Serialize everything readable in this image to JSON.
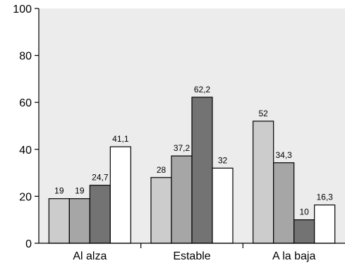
{
  "chart_data": {
    "type": "bar",
    "categories": [
      "Al alza",
      "Estable",
      "A la baja"
    ],
    "series": [
      {
        "values": [
          19,
          28,
          52
        ],
        "labels": [
          "19",
          "28",
          "52"
        ],
        "color": "#cccccc"
      },
      {
        "values": [
          19,
          37.2,
          34.3
        ],
        "labels": [
          "19",
          "37,2",
          "34,3"
        ],
        "color": "#a6a6a6"
      },
      {
        "values": [
          24.7,
          62.2,
          10
        ],
        "labels": [
          "24,7",
          "62,2",
          "10"
        ],
        "color": "#737373"
      },
      {
        "values": [
          41.1,
          32,
          16.3
        ],
        "labels": [
          "41,1",
          "32",
          "16,3"
        ],
        "color": "#ffffff"
      }
    ],
    "ylim": [
      0,
      100
    ],
    "yticks": [
      0,
      20,
      40,
      60,
      80,
      100
    ],
    "title": "",
    "xlabel": "",
    "ylabel": "",
    "plot_background": "#ececec",
    "grid": false,
    "legend": "none"
  }
}
